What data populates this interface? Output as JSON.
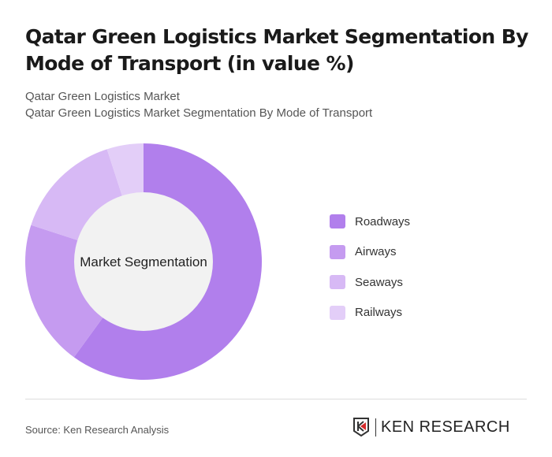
{
  "title": "Qatar Green Logistics Market Segmentation By Mode of Transport (in value %)",
  "subtitle1": "Qatar Green Logistics Market",
  "subtitle2": "Qatar Green Logistics Market Segmentation By Mode of Transport",
  "source": "Source: Ken Research Analysis",
  "logo_text": "KEN RESEARCH",
  "chart_data": {
    "type": "pie",
    "variant": "donut",
    "center_label": "Market Segmentation",
    "categories": [
      "Roadways",
      "Airways",
      "Seaways",
      "Railways"
    ],
    "values": [
      60,
      20,
      15,
      5
    ],
    "colors": [
      "#b17fec",
      "#c59bf0",
      "#d7b9f5",
      "#e3cef8"
    ],
    "legend_position": "right"
  }
}
